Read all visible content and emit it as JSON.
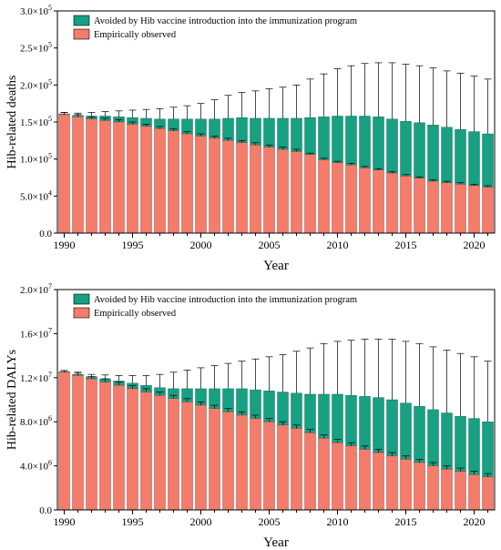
{
  "colors": {
    "observed": "#f47c6b",
    "avoided": "#17a082",
    "axis": "#000000"
  },
  "legend": {
    "avoided_label": "Avoided by Hib vaccine introduction into the immunization program",
    "observed_label": "Empirically observed"
  },
  "chart_data": [
    {
      "type": "bar",
      "stacked": true,
      "xlabel": "Year",
      "ylabel": "Hib-related deaths",
      "ylim": [
        0,
        300000
      ],
      "legend_position": "top-left",
      "x_tick_labels": [
        "1990",
        "1995",
        "2000",
        "2005",
        "2010",
        "2015",
        "2020"
      ],
      "y_ticks": [
        {
          "value": 0,
          "mantissa": "0.0",
          "exp": ""
        },
        {
          "value": 50000,
          "mantissa": "5.0×10",
          "exp": "4"
        },
        {
          "value": 100000,
          "mantissa": "1.0×10",
          "exp": "5"
        },
        {
          "value": 150000,
          "mantissa": "1.5×10",
          "exp": "5"
        },
        {
          "value": 200000,
          "mantissa": "2.0×10",
          "exp": "5"
        },
        {
          "value": 250000,
          "mantissa": "2.5×10",
          "exp": "5"
        },
        {
          "value": 300000,
          "mantissa": "3.0×10",
          "exp": "5"
        }
      ],
      "categories": [
        1990,
        1991,
        1992,
        1993,
        1994,
        1995,
        1996,
        1997,
        1998,
        1999,
        2000,
        2001,
        2002,
        2003,
        2004,
        2005,
        2006,
        2007,
        2008,
        2009,
        2010,
        2011,
        2012,
        2013,
        2014,
        2015,
        2016,
        2017,
        2018,
        2019,
        2020,
        2021
      ],
      "series": [
        {
          "name": "Empirically observed",
          "values": [
            160000,
            157000,
            154000,
            152000,
            150000,
            147000,
            144000,
            141000,
            138000,
            134000,
            131000,
            128000,
            125000,
            122000,
            119000,
            116000,
            113000,
            110000,
            106000,
            99000,
            95000,
            92000,
            88000,
            85000,
            81000,
            77000,
            74000,
            70000,
            68000,
            66000,
            64000,
            62000
          ],
          "error_upper": [
            163000,
            160000,
            157000,
            155000,
            153000,
            150000,
            147000,
            144000,
            141000,
            137000,
            134000,
            131000,
            128000,
            125000,
            122000,
            119000,
            116000,
            113000,
            108000,
            101000,
            97000,
            94000,
            90000,
            87000,
            83000,
            79000,
            76000,
            72000,
            70000,
            68000,
            66000,
            64000
          ]
        },
        {
          "name": "Avoided by Hib vaccine introduction into the immunization program",
          "totals": [
            161000,
            159000,
            158000,
            158000,
            157000,
            156000,
            155000,
            154000,
            154000,
            154000,
            154000,
            154000,
            155000,
            156000,
            155000,
            155000,
            155000,
            155000,
            156000,
            157000,
            158000,
            158000,
            158000,
            157000,
            154000,
            151000,
            149000,
            146000,
            143000,
            140000,
            137000,
            134000
          ],
          "error_upper": [
            163000,
            162000,
            163000,
            164000,
            165000,
            166000,
            167000,
            168000,
            170000,
            172000,
            175000,
            180000,
            186000,
            190000,
            192000,
            195000,
            197000,
            200000,
            208000,
            215000,
            222000,
            226000,
            229000,
            230000,
            230000,
            228000,
            226000,
            223000,
            219000,
            216000,
            212000,
            208000
          ]
        }
      ]
    },
    {
      "type": "bar",
      "stacked": true,
      "xlabel": "Year",
      "ylabel": "Hib-related DALYs",
      "ylim": [
        0,
        20000000
      ],
      "legend_position": "top-left",
      "x_tick_labels": [
        "1990",
        "1995",
        "2000",
        "2005",
        "2010",
        "2015",
        "2020"
      ],
      "y_ticks": [
        {
          "value": 0,
          "mantissa": "0.0",
          "exp": ""
        },
        {
          "value": 4000000,
          "mantissa": "4.0×10",
          "exp": "6"
        },
        {
          "value": 8000000,
          "mantissa": "8.0×10",
          "exp": "6"
        },
        {
          "value": 12000000,
          "mantissa": "1.2×10",
          "exp": "7"
        },
        {
          "value": 16000000,
          "mantissa": "1.6×10",
          "exp": "7"
        },
        {
          "value": 20000000,
          "mantissa": "2.0×10",
          "exp": "7"
        }
      ],
      "categories": [
        1990,
        1991,
        1992,
        1993,
        1994,
        1995,
        1996,
        1997,
        1998,
        1999,
        2000,
        2001,
        2002,
        2003,
        2004,
        2005,
        2006,
        2007,
        2008,
        2009,
        2010,
        2011,
        2012,
        2013,
        2014,
        2015,
        2016,
        2017,
        2018,
        2019,
        2020,
        2021
      ],
      "series": [
        {
          "name": "Empirically observed",
          "values": [
            12500000,
            12200000,
            11900000,
            11600000,
            11300000,
            11000000,
            10700000,
            10400000,
            10100000,
            9800000,
            9500000,
            9200000,
            8900000,
            8600000,
            8300000,
            8000000,
            7700000,
            7400000,
            7000000,
            6500000,
            6100000,
            5800000,
            5500000,
            5200000,
            4900000,
            4600000,
            4300000,
            4000000,
            3700000,
            3500000,
            3200000,
            3000000
          ],
          "error_upper": [
            12650000,
            12400000,
            12100000,
            11900000,
            11600000,
            11300000,
            11000000,
            10700000,
            10400000,
            10100000,
            9800000,
            9500000,
            9200000,
            8900000,
            8600000,
            8300000,
            8000000,
            7700000,
            7300000,
            6800000,
            6400000,
            6100000,
            5800000,
            5500000,
            5200000,
            4900000,
            4600000,
            4300000,
            4000000,
            3800000,
            3500000,
            3300000
          ]
        },
        {
          "name": "Avoided by Hib vaccine introduction into the immunization program",
          "totals": [
            12550000,
            12300000,
            12100000,
            11900000,
            11700000,
            11500000,
            11300000,
            11100000,
            11000000,
            11000000,
            11000000,
            11000000,
            11000000,
            11000000,
            10900000,
            10800000,
            10700000,
            10600000,
            10500000,
            10500000,
            10500000,
            10400000,
            10300000,
            10200000,
            10000000,
            9700000,
            9400000,
            9100000,
            8800000,
            8500000,
            8300000,
            8000000
          ],
          "error_upper": [
            12650000,
            12500000,
            12300000,
            12250000,
            12200000,
            12200000,
            12200000,
            12300000,
            12500000,
            12700000,
            12900000,
            13100000,
            13300000,
            13500000,
            13700000,
            13900000,
            14100000,
            14400000,
            14700000,
            15100000,
            15300000,
            15400000,
            15500000,
            15500000,
            15500000,
            15300000,
            15100000,
            14800000,
            14500000,
            14200000,
            13900000,
            13500000
          ]
        }
      ]
    }
  ]
}
